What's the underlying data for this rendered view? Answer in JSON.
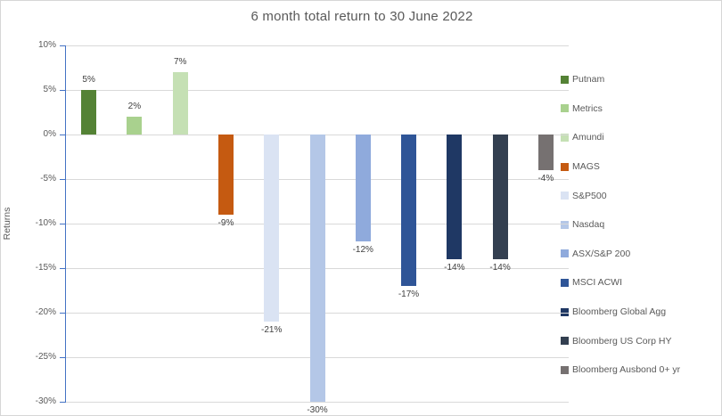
{
  "chart_data": {
    "type": "bar",
    "title": "6 month total return to 30 June 2022",
    "xlabel": "",
    "ylabel": "Returns",
    "ylim": [
      -30,
      10
    ],
    "ytick_step": 5,
    "ytick_labels": [
      "10%",
      "5%",
      "0%",
      "-5%",
      "-10%",
      "-15%",
      "-20%",
      "-25%",
      "-30%"
    ],
    "grid": true,
    "legend_position": "right",
    "axis_color": "#4472C4",
    "gridline_color": "#D9D9D9",
    "series": [
      {
        "name": "Putnam",
        "value": 5,
        "label": "5%",
        "color": "#548235"
      },
      {
        "name": "Metrics",
        "value": 2,
        "label": "2%",
        "color": "#A9D18E"
      },
      {
        "name": "Amundi",
        "value": 7,
        "label": "7%",
        "color": "#C5E0B4"
      },
      {
        "name": "MAGS",
        "value": -9,
        "label": "-9%",
        "color": "#C55A11"
      },
      {
        "name": "S&P500",
        "value": -21,
        "label": "-21%",
        "color": "#DAE3F3"
      },
      {
        "name": "Nasdaq",
        "value": -30,
        "label": "-30%",
        "color": "#B4C7E7"
      },
      {
        "name": "ASX/S&P 200",
        "value": -12,
        "label": "-12%",
        "color": "#8FAADC"
      },
      {
        "name": "MSCI ACWI",
        "value": -17,
        "label": "-17%",
        "color": "#2F5597"
      },
      {
        "name": "Bloomberg Global Agg",
        "value": -14,
        "label": "-14%",
        "color": "#1F3864"
      },
      {
        "name": "Bloomberg US Corp HY",
        "value": -14,
        "label": "-14%",
        "color": "#333F50"
      },
      {
        "name": "Bloomberg Ausbond 0+ yr",
        "value": -4,
        "label": "-4%",
        "color": "#767171"
      }
    ]
  }
}
